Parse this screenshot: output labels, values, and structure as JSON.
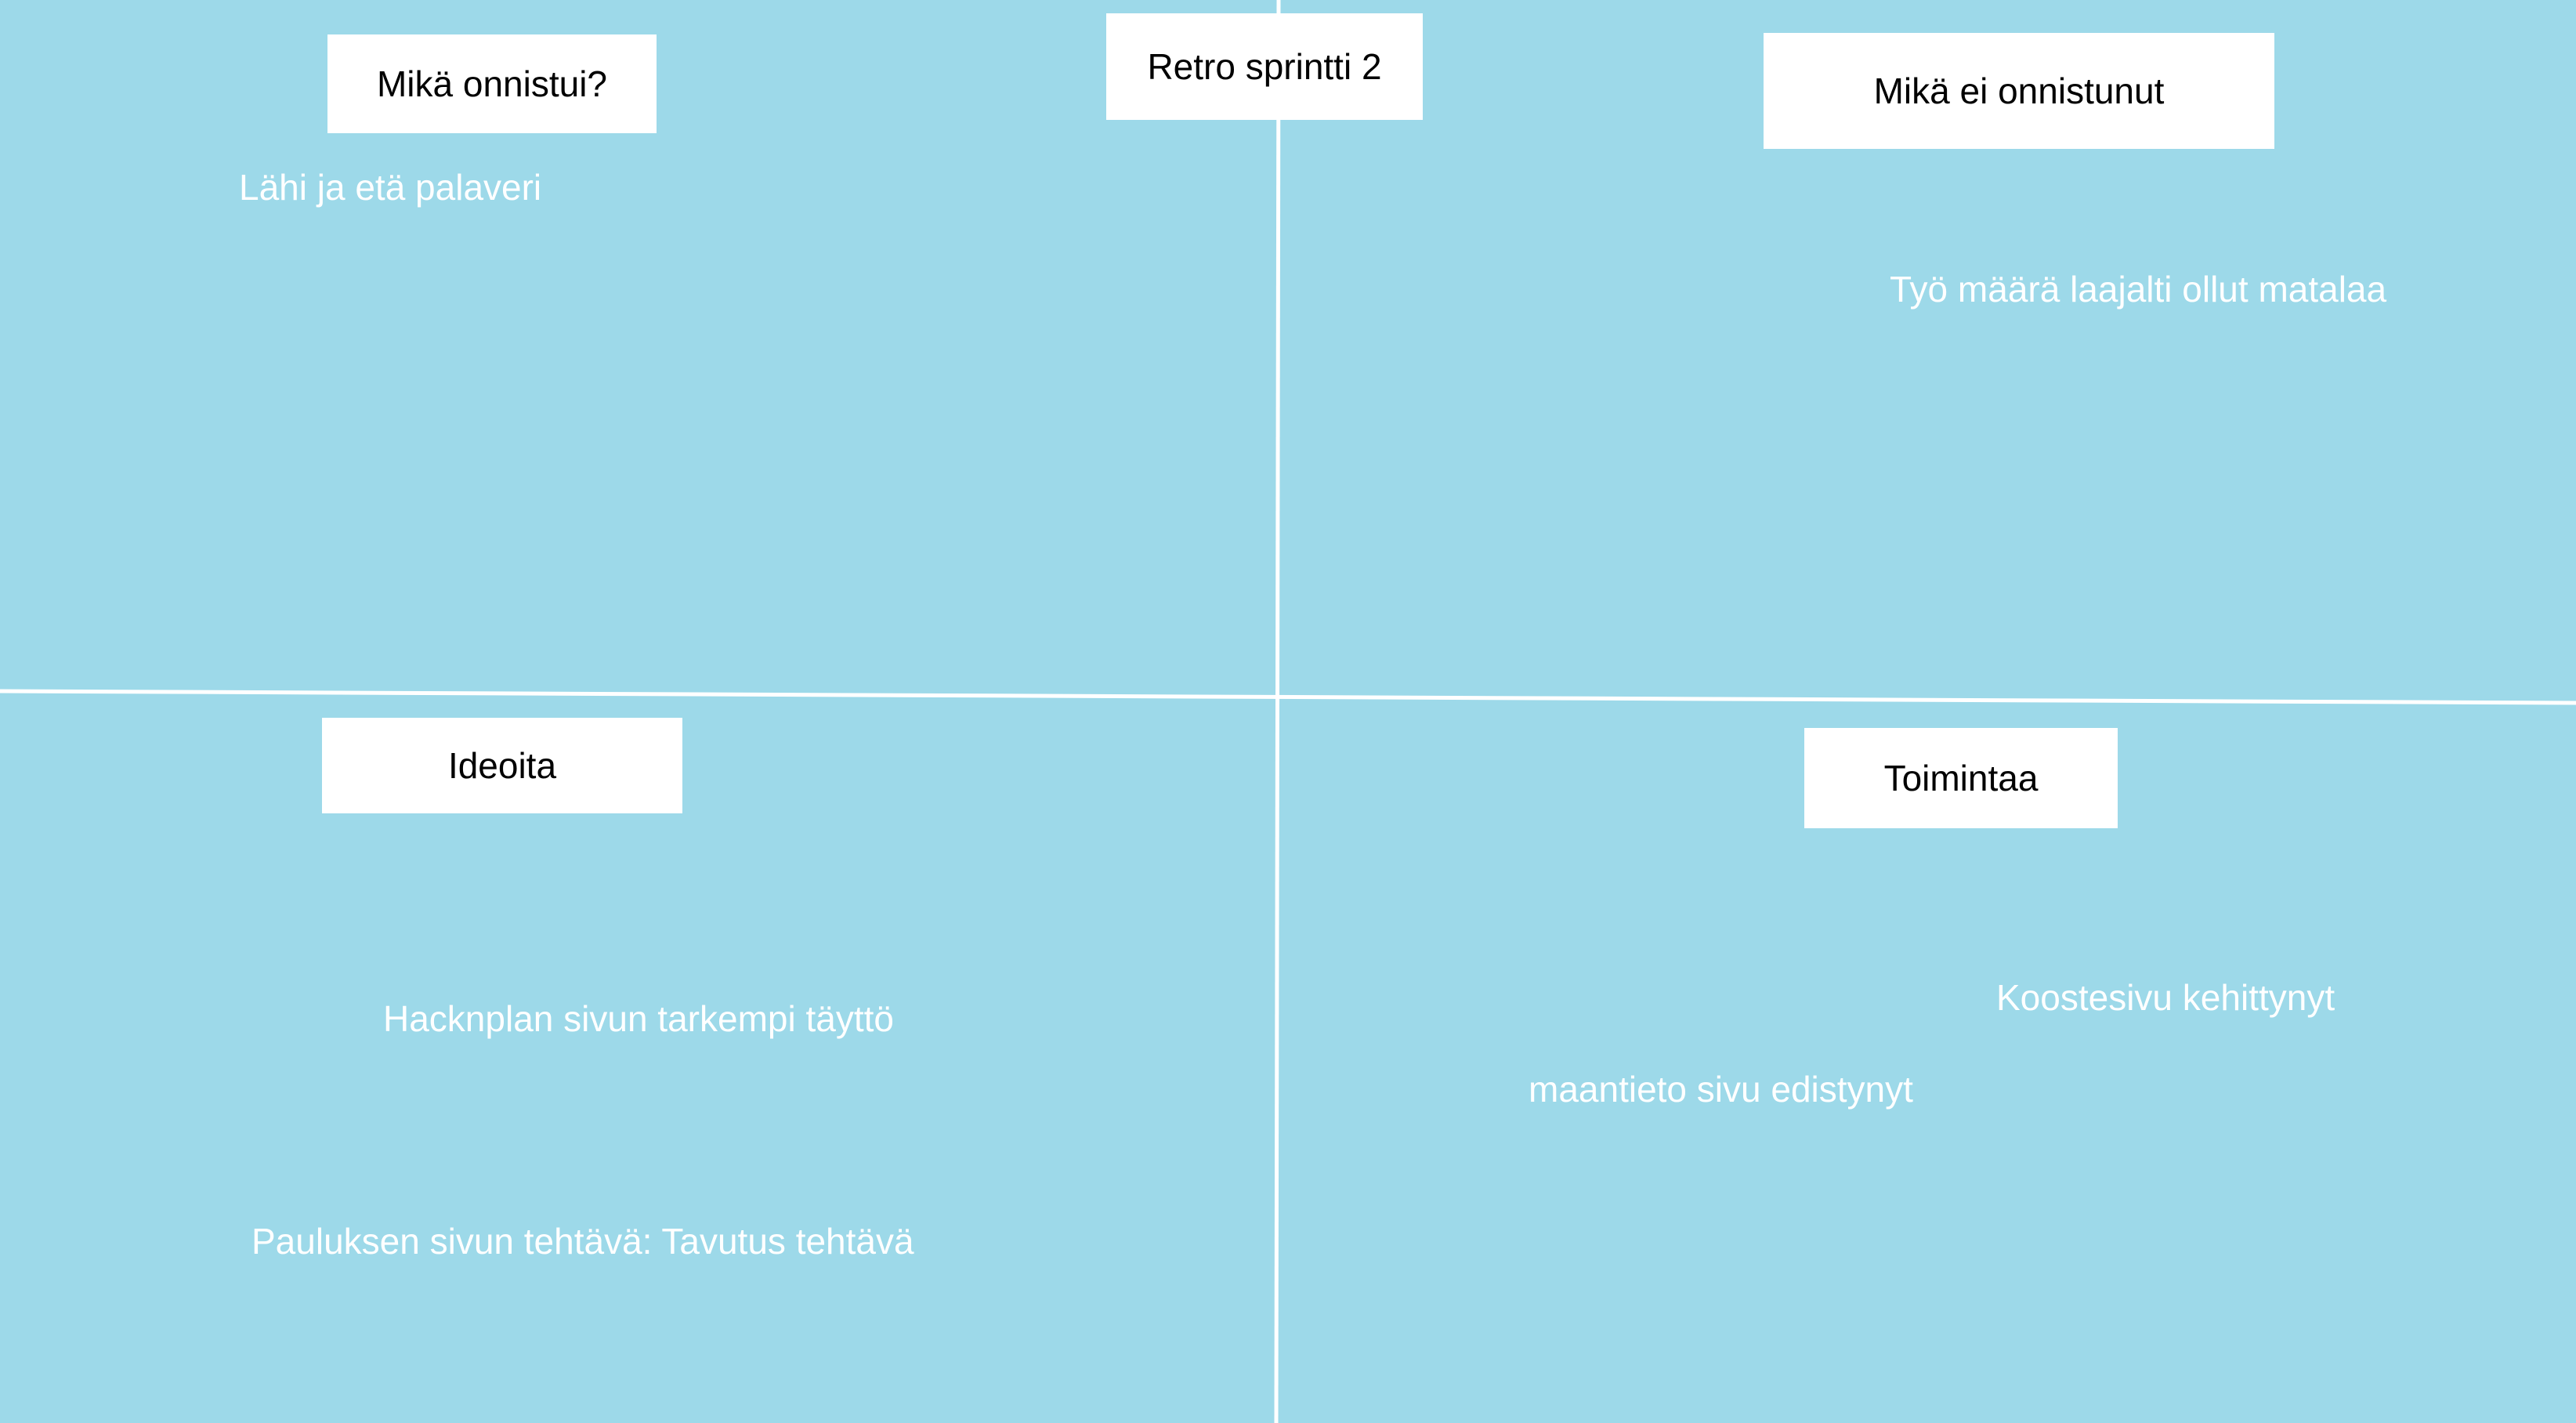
{
  "board": {
    "title": "Retro sprintti 2",
    "background_color": "#9dd9e9",
    "line_color": "#ffffff",
    "label_color": "#ffffff",
    "note_color": "#ffffff",
    "quadrants": {
      "top_left": {
        "heading": "Mikä onnistui?",
        "notes": [
          "Lähi ja etä palaveri"
        ]
      },
      "top_right": {
        "heading": "Mikä ei onnistunut",
        "notes": [
          "Työ määrä laajalti ollut matalaa"
        ]
      },
      "bottom_left": {
        "heading": "Ideoita",
        "notes": [
          "Hacknplan sivun tarkempi täyttö",
          "Pauluksen sivun tehtävä: Tavutus tehtävä"
        ]
      },
      "bottom_right": {
        "heading": "Toimintaa",
        "notes": [
          "Koostesivu kehittynyt",
          "maantieto sivu edistynyt"
        ]
      }
    }
  }
}
